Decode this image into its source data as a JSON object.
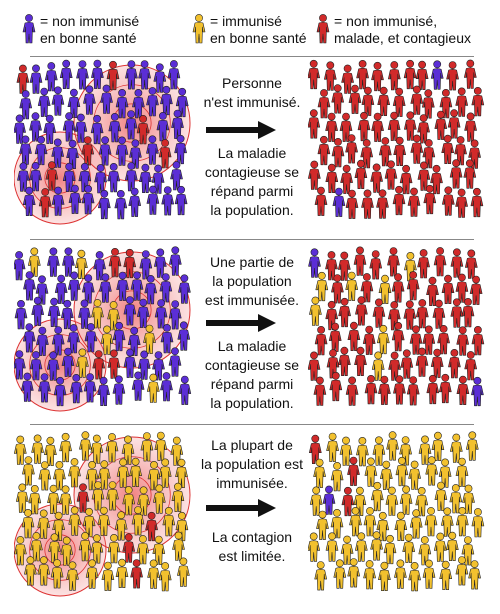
{
  "legend": [
    {
      "label": "= non immunisé\nen bonne santé",
      "color": "#5b2ed6"
    },
    {
      "label": "= immunisé\nen bonne santé",
      "color": "#f2c12e"
    },
    {
      "label": "= non immunisé,\nmalade, et contagieux",
      "color": "#d12a2a"
    }
  ],
  "colors": {
    "blue": "#5b2ed6",
    "yellow": "#f2c12e",
    "red": "#d12a2a",
    "halo": "#f28b8b",
    "arrow": "#111111"
  },
  "panels": [
    {
      "text_top": "Personne\nn'est immunisé.",
      "text_bottom": "La maladie\ncontagieuse se\nrépand parmi\nla population.",
      "before": {
        "blue": 0.92,
        "yellow": 0.0,
        "red": 0.08
      },
      "after": {
        "blue": 0.04,
        "yellow": 0.0,
        "red": 0.96
      }
    },
    {
      "text_top": "Une partie de\nla population\nest immunisée.",
      "text_bottom": "La maladie\ncontagieuse se\nrépand parmi\nla population.",
      "before": {
        "blue": 0.8,
        "yellow": 0.12,
        "red": 0.08
      },
      "after": {
        "blue": 0.05,
        "yellow": 0.13,
        "red": 0.82
      }
    },
    {
      "text_top": "La plupart de\nla population est\nimmunisée.",
      "text_bottom": "La contagion\nest limitée.",
      "before": {
        "blue": 0.04,
        "yellow": 0.9,
        "red": 0.06
      },
      "after": {
        "blue": 0.04,
        "yellow": 0.92,
        "red": 0.04
      }
    }
  ]
}
